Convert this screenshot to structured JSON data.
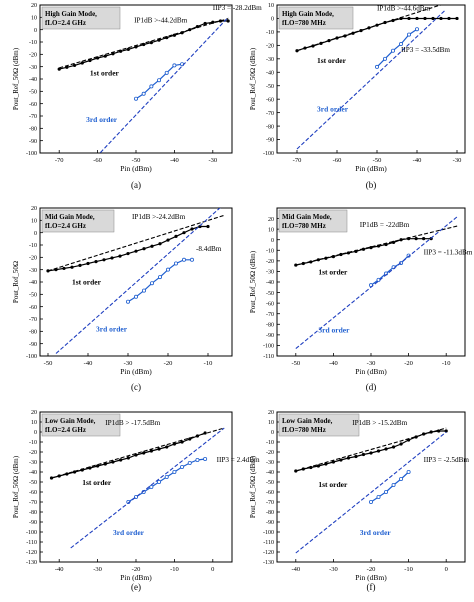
{
  "colors": {
    "measured": "#000000",
    "third_order": "#1f5fd0",
    "fit_fundamental": "#000000",
    "fit_third": "#1f3fc0",
    "mode_box_fill": "#d9d9d9"
  },
  "chart_data": [
    {
      "type": "line",
      "panel_label": "(a)",
      "mode_lines": [
        "High Gain Mode,",
        "fLO=2.4 GHz"
      ],
      "xlabel": "Pin (dBm)",
      "ylabel": "Pout_Ref_50Ω (dBm)",
      "xlim": [
        -75,
        -25
      ],
      "ylim": [
        -100,
        20
      ],
      "xticks": [
        -70,
        -60,
        -50,
        -40,
        -30
      ],
      "yticks": [
        -100,
        -90,
        -80,
        -70,
        -60,
        -50,
        -40,
        -30,
        -20,
        -10,
        0,
        10,
        20
      ],
      "annotations": [
        {
          "text": "IIP3 = -28.2dBm",
          "x": -30.0,
          "y": 16
        },
        {
          "text": "IP1dB >-44.2dBm",
          "x": -50.5,
          "y": 6
        },
        {
          "text": "1st order",
          "x": -62,
          "y": -37
        },
        {
          "text": "3rd order",
          "x": -63,
          "y": -75
        }
      ],
      "series": [
        {
          "role": "fundamental",
          "x": [
            -70,
            -68,
            -66,
            -64,
            -62,
            -60,
            -58,
            -56,
            -54,
            -52,
            -50,
            -48,
            -46,
            -44,
            -42,
            -40,
            -38,
            -36,
            -34,
            -32,
            -30,
            -28,
            -26
          ],
          "y": [
            -32,
            -30.5,
            -29,
            -27,
            -25,
            -23,
            -21.5,
            -19.5,
            -17.5,
            -16,
            -14,
            -12,
            -10.5,
            -8.5,
            -6.5,
            -4.5,
            -2.5,
            0,
            2.5,
            5,
            6,
            7,
            7
          ]
        },
        {
          "role": "third",
          "x": [
            -50,
            -48,
            -46,
            -44,
            -42,
            -40,
            -38
          ],
          "y": [
            -56,
            -52,
            -46,
            -41,
            -35,
            -29,
            -28
          ]
        },
        {
          "role": "fundamental_fit",
          "x": [
            -70,
            -26
          ],
          "y": [
            -31,
            9
          ]
        },
        {
          "role": "third_fit",
          "x": [
            -70,
            -26
          ],
          "y": [
            -135,
            10
          ]
        }
      ]
    },
    {
      "type": "line",
      "panel_label": "(b)",
      "mode_lines": [
        "High Gain Mode,",
        "fLO=780 MHz"
      ],
      "xlabel": "Pin (dBm)",
      "ylabel": "Pout_Ref_50Ω (dBm)",
      "xlim": [
        -75,
        -28
      ],
      "ylim": [
        -100,
        10
      ],
      "xticks": [
        -70,
        -60,
        -50,
        -40,
        -30
      ],
      "yticks": [
        -100,
        -90,
        -80,
        -70,
        -60,
        -50,
        -40,
        -30,
        -20,
        -10,
        0,
        10
      ],
      "annotations": [
        {
          "text": "IP1dB >-44.6dBm",
          "x": -50,
          "y": 6
        },
        {
          "text": "IIP3 = -33.5dBm",
          "x": -44,
          "y": -25
        },
        {
          "text": "1st order",
          "x": -65,
          "y": -33
        },
        {
          "text": "3rd order",
          "x": -65,
          "y": -69
        }
      ],
      "series": [
        {
          "role": "fundamental",
          "x": [
            -70,
            -68,
            -66,
            -64,
            -62,
            -60,
            -58,
            -56,
            -54,
            -52,
            -50,
            -48,
            -46,
            -44,
            -42,
            -40,
            -38,
            -36,
            -34,
            -32,
            -30
          ],
          "y": [
            -24,
            -22,
            -20.5,
            -18.5,
            -16.5,
            -14.5,
            -13,
            -11,
            -9,
            -7,
            -5,
            -3,
            -1.5,
            0,
            0,
            0,
            0,
            0,
            0,
            0,
            0
          ]
        },
        {
          "role": "third",
          "x": [
            -50,
            -48,
            -46,
            -44,
            -42,
            -40
          ],
          "y": [
            -36,
            -30,
            -24,
            -19,
            -12,
            -8
          ]
        },
        {
          "role": "fundamental_fit",
          "x": [
            -70,
            -31
          ],
          "y": [
            -24,
            13
          ]
        },
        {
          "role": "third_fit",
          "x": [
            -70,
            -33
          ],
          "y": [
            -97,
            6
          ]
        }
      ]
    },
    {
      "type": "line",
      "panel_label": "(c)",
      "mode_lines": [
        "Mid Gain Mode,",
        "fLO=2.4 GHz"
      ],
      "xlabel": "Pin (dBm)",
      "ylabel": "Pout_Ref_50Ω",
      "xlim": [
        -52,
        -4
      ],
      "ylim": [
        -100,
        20
      ],
      "xticks": [
        -50,
        -40,
        -30,
        -20,
        -10
      ],
      "yticks": [
        -100,
        -90,
        -80,
        -70,
        -60,
        -50,
        -40,
        -30,
        -20,
        -10,
        0,
        10,
        20
      ],
      "annotations": [
        {
          "text": "IP1dB >-24.2dBm",
          "x": -29,
          "y": 11
        },
        {
          "text": "-8.4dBm",
          "x": -13,
          "y": -15
        },
        {
          "text": "1st order",
          "x": -44,
          "y": -42
        },
        {
          "text": "3rd order",
          "x": -38,
          "y": -80
        }
      ],
      "series": [
        {
          "role": "fundamental",
          "x": [
            -50,
            -48,
            -46,
            -44,
            -42,
            -40,
            -38,
            -36,
            -34,
            -32,
            -30,
            -28,
            -26,
            -24,
            -22,
            -20,
            -18,
            -16,
            -14,
            -12,
            -10
          ],
          "y": [
            -31,
            -30,
            -29,
            -28,
            -26.5,
            -25,
            -23.5,
            -22,
            -20.5,
            -19,
            -17,
            -15,
            -13,
            -11,
            -9,
            -6,
            -3,
            0,
            3,
            5,
            5
          ]
        },
        {
          "role": "third",
          "x": [
            -30,
            -28,
            -26,
            -24,
            -22,
            -20,
            -18,
            -16,
            -14
          ],
          "y": [
            -56,
            -52,
            -47,
            -41,
            -36,
            -30,
            -25,
            -22,
            -22
          ]
        },
        {
          "role": "fundamental_fit",
          "x": [
            -50,
            -6
          ],
          "y": [
            -31,
            14
          ]
        },
        {
          "role": "third_fit",
          "x": [
            -48,
            -6
          ],
          "y": [
            -98,
            23
          ]
        }
      ]
    },
    {
      "type": "line",
      "panel_label": "(d)",
      "mode_lines": [
        "Mid Gain Mode,",
        "fLO=780 MHz"
      ],
      "xlabel": "Pin (dBm)",
      "ylabel": "Pout_Ref_50Ω (dBm)",
      "xlim": [
        -55,
        -5
      ],
      "ylim": [
        -110,
        30
      ],
      "xticks": [
        -50,
        -40,
        -30,
        -20,
        -10
      ],
      "yticks": [
        -110,
        -100,
        -90,
        -80,
        -70,
        -60,
        -50,
        -40,
        -30,
        -20,
        -10,
        0,
        10,
        20
      ],
      "annotations": [
        {
          "text": "IP1dB = -22dBm",
          "x": -33,
          "y": 12
        },
        {
          "text": "IIP3 = -11.3dBm",
          "x": -16,
          "y": -14
        },
        {
          "text": "1st order",
          "x": -44,
          "y": -33
        },
        {
          "text": "3rd order",
          "x": -44,
          "y": -88
        }
      ],
      "series": [
        {
          "role": "fundamental",
          "x": [
            -50,
            -48,
            -46,
            -44,
            -42,
            -40,
            -38,
            -36,
            -34,
            -32,
            -30,
            -28,
            -26,
            -24,
            -22,
            -20,
            -18,
            -16,
            -14
          ],
          "y": [
            -24,
            -22.5,
            -21,
            -19,
            -17.5,
            -16,
            -14,
            -12.5,
            -11,
            -9,
            -7.5,
            -6,
            -4.5,
            -2.5,
            0,
            1,
            1,
            1,
            1
          ]
        },
        {
          "role": "third",
          "x": [
            -30,
            -28,
            -26,
            -24,
            -22,
            -20
          ],
          "y": [
            -43,
            -38,
            -32,
            -26,
            -22,
            -15
          ]
        },
        {
          "role": "fundamental_fit",
          "x": [
            -50,
            -7
          ],
          "y": [
            -24,
            13
          ]
        },
        {
          "role": "third_fit",
          "x": [
            -50,
            -7
          ],
          "y": [
            -103,
            22
          ]
        }
      ]
    },
    {
      "type": "line",
      "panel_label": "(e)",
      "mode_lines": [
        "Low Gain Mode,",
        "fLO=2.4 GHz"
      ],
      "xlabel": "Pin (dBm)",
      "ylabel": "Pout_Ref_50Ω (dBm)",
      "xlim": [
        -45,
        5
      ],
      "ylim": [
        -130,
        20
      ],
      "xticks": [
        -40,
        -30,
        -20,
        -10,
        0
      ],
      "yticks": [
        -130,
        -120,
        -110,
        -100,
        -90,
        -80,
        -70,
        -60,
        -50,
        -40,
        -30,
        -20,
        -10,
        0,
        10,
        20
      ],
      "annotations": [
        {
          "text": "IP1dB > -17.5dBm",
          "x": -28,
          "y": 7
        },
        {
          "text": "IIP3 = 2.4dBm",
          "x": 1,
          "y": -30
        },
        {
          "text": "1st order",
          "x": -34,
          "y": -53
        },
        {
          "text": "3rd order",
          "x": -26,
          "y": -103
        }
      ],
      "series": [
        {
          "role": "fundamental",
          "x": [
            -42,
            -40,
            -38,
            -36,
            -34,
            -32,
            -30,
            -28,
            -26,
            -24,
            -22,
            -20,
            -18,
            -16,
            -14,
            -12,
            -10,
            -8,
            -6,
            -4,
            -2
          ],
          "y": [
            -46,
            -44,
            -42,
            -40,
            -38,
            -36,
            -34,
            -32,
            -30,
            -28,
            -26,
            -23,
            -21,
            -19,
            -17,
            -15,
            -12,
            -10,
            -7,
            -4,
            -1
          ]
        },
        {
          "role": "third",
          "x": [
            -22,
            -20,
            -18,
            -16,
            -14,
            -12,
            -10,
            -8,
            -6,
            -4,
            -2
          ],
          "y": [
            -70,
            -65,
            -60,
            -55,
            -50,
            -45,
            -40,
            -35,
            -31,
            -28,
            -27
          ]
        },
        {
          "role": "fundamental_fit",
          "x": [
            -42,
            3
          ],
          "y": [
            -46,
            4
          ]
        },
        {
          "role": "third_fit",
          "x": [
            -37,
            3
          ],
          "y": [
            -116,
            4
          ]
        }
      ]
    },
    {
      "type": "line",
      "panel_label": "(f)",
      "mode_lines": [
        "Low Gain Mode,",
        "fLO=780 MHz"
      ],
      "xlabel": "Pin (dBm)",
      "ylabel": "Pout_Ref_50Ω (dBm)",
      "xlim": [
        -45,
        5
      ],
      "ylim": [
        -130,
        20
      ],
      "xticks": [
        -40,
        -30,
        -20,
        -10,
        0
      ],
      "yticks": [
        -130,
        -120,
        -110,
        -100,
        -90,
        -80,
        -70,
        -60,
        -50,
        -40,
        -30,
        -20,
        -10,
        0,
        10,
        20
      ],
      "annotations": [
        {
          "text": "IP1dB > -15.2dBm",
          "x": -25,
          "y": 7
        },
        {
          "text": "IIP3 = -2.5dBm",
          "x": -6,
          "y": -30
        },
        {
          "text": "1st order",
          "x": -34,
          "y": -55
        },
        {
          "text": "3rd order",
          "x": -23,
          "y": -103
        }
      ],
      "series": [
        {
          "role": "fundamental",
          "x": [
            -40,
            -38,
            -36,
            -34,
            -32,
            -30,
            -28,
            -26,
            -24,
            -22,
            -20,
            -18,
            -16,
            -14,
            -12,
            -10,
            -8,
            -6,
            -4,
            -2,
            0
          ],
          "y": [
            -39,
            -37,
            -35.5,
            -34,
            -32,
            -30,
            -28,
            -26,
            -24.5,
            -22.5,
            -21,
            -19,
            -17,
            -15,
            -12,
            -8,
            -5,
            -2,
            0,
            1,
            1
          ]
        },
        {
          "role": "third",
          "x": [
            -20,
            -18,
            -16,
            -14,
            -12,
            -10
          ],
          "y": [
            -70,
            -65,
            -60,
            -53,
            -47,
            -40
          ]
        },
        {
          "role": "fundamental_fit",
          "x": [
            -40,
            0
          ],
          "y": [
            -39,
            4
          ]
        },
        {
          "role": "third_fit",
          "x": [
            -40,
            0
          ],
          "y": [
            -121,
            0
          ]
        }
      ]
    }
  ]
}
